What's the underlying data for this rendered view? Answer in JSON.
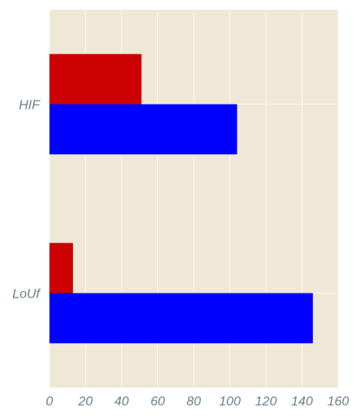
{
  "chart_data": {
    "type": "bar",
    "orientation": "horizontal",
    "categories": [
      "HIF",
      "LoUf"
    ],
    "series": [
      {
        "color": "#cc0000",
        "values": [
          51,
          13
        ]
      },
      {
        "color": "#0000ff",
        "values": [
          104,
          146
        ]
      }
    ],
    "title": "",
    "xlabel": "",
    "ylabel": "",
    "xlim": [
      0,
      160
    ],
    "xticks": [
      "0",
      "20",
      "40",
      "60",
      "80",
      "100",
      "120",
      "140",
      "160"
    ],
    "grid": true,
    "legend": "none",
    "colors": {
      "background": "#efe8d6",
      "grid": "#fbf8f0",
      "tick_text": "#6b7f8a"
    }
  }
}
